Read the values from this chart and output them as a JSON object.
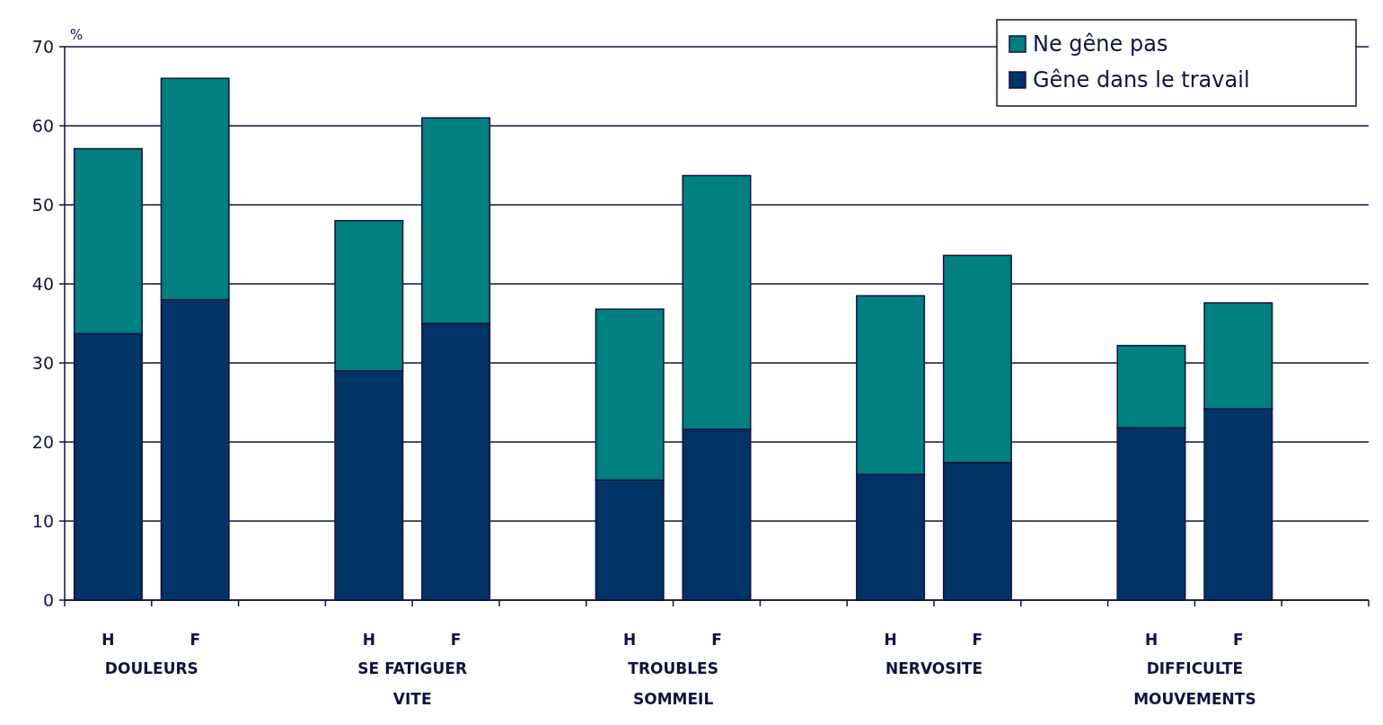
{
  "chart_data": {
    "type": "bar",
    "stacked": true,
    "ylabel": "%",
    "categories": [
      "H",
      "F",
      null,
      "H",
      "F",
      null,
      "H",
      "F",
      null,
      "H",
      "F",
      null,
      "H",
      "F",
      null
    ],
    "series": [
      {
        "name": "Gêne dans le travail",
        "color": "#003366",
        "values": [
          33.7,
          38,
          null,
          29,
          35,
          null,
          15.2,
          21.6,
          null,
          15.9,
          17.4,
          null,
          21.8,
          24.2,
          null
        ]
      },
      {
        "name": "Ne gêne pas",
        "color": "#008080",
        "values": [
          23.4,
          28,
          null,
          19,
          26,
          null,
          21.6,
          32.1,
          null,
          22.6,
          26.2,
          null,
          10.4,
          13.4,
          null
        ]
      }
    ],
    "annotations": [
      "DOULEURS",
      "SE FATIGUER\nVITE",
      "TROUBLES\nSOMMEIL",
      "NERVOSITE",
      "DIFFICULTE\nMOUVEMENTS"
    ],
    "ylim": [
      0,
      70
    ],
    "yticks": [
      0,
      10,
      20,
      30,
      40,
      50,
      60,
      70
    ],
    "grid": "y",
    "legend": "top right"
  }
}
